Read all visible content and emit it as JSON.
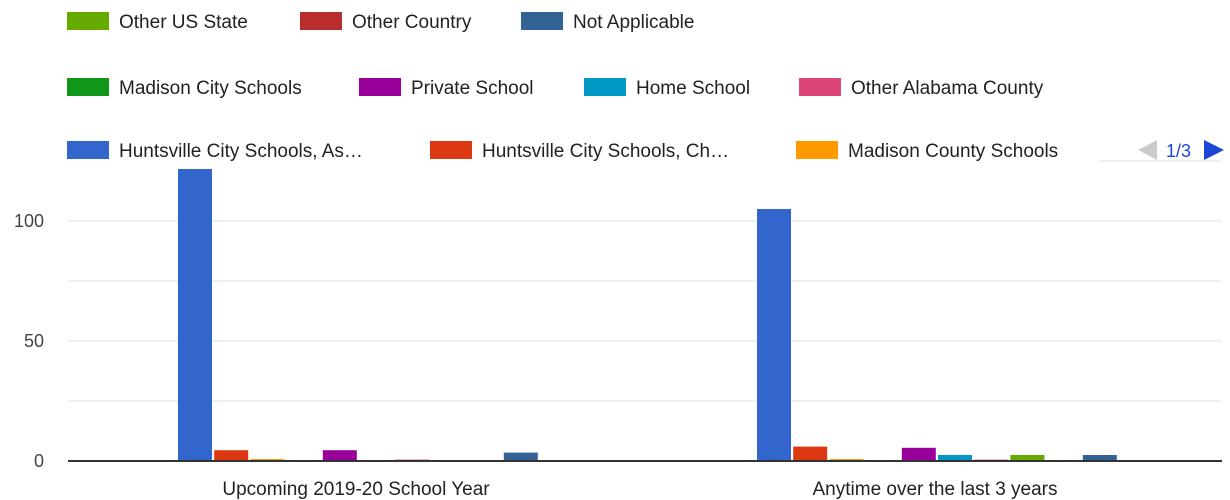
{
  "chart_data": {
    "type": "bar",
    "categories": [
      "Upcoming 2019-20 School Year",
      "Anytime over the last 3 years"
    ],
    "series": [
      {
        "name": "Huntsville City Schools, As…",
        "color": "#3366cc",
        "values": [
          126,
          105
        ]
      },
      {
        "name": "Huntsville City Schools, Ch…",
        "color": "#dc3912",
        "values": [
          4.5,
          6
        ]
      },
      {
        "name": "Madison County Schools",
        "color": "#ff9900",
        "values": [
          0.8,
          0.8
        ]
      },
      {
        "name": "Madison City Schools",
        "color": "#109618",
        "values": [
          0,
          0
        ]
      },
      {
        "name": "Private School",
        "color": "#990099",
        "values": [
          4.5,
          5.5
        ]
      },
      {
        "name": "Home School",
        "color": "#0099c6",
        "values": [
          0,
          2.5
        ]
      },
      {
        "name": "Other Alabama County",
        "color": "#dd4477",
        "values": [
          0.6,
          0.6
        ]
      },
      {
        "name": "Other US State",
        "color": "#66aa00",
        "values": [
          0,
          2.5
        ]
      },
      {
        "name": "Other Country",
        "color": "#b82e2e",
        "values": [
          0,
          0
        ]
      },
      {
        "name": "Not Applicable",
        "color": "#316395",
        "values": [
          3.5,
          2.5
        ]
      }
    ],
    "yticks": [
      0,
      50,
      100
    ],
    "ylim": [
      0,
      126
    ],
    "grid": true,
    "legend_position": "top",
    "legend_page": "1/3",
    "legend_rows": [
      [
        "Other US State",
        "Other Country",
        "Not Applicable"
      ],
      [
        "Madison City Schools",
        "Private School",
        "Home School",
        "Other Alabama County"
      ],
      [
        "Huntsville City Schools, As…",
        "Huntsville City Schools, Ch…",
        "Madison County Schools"
      ]
    ]
  }
}
